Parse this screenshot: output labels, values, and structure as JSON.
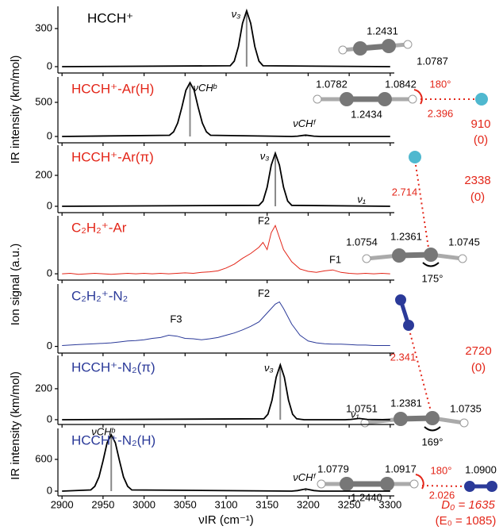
{
  "x_axis": {
    "label": "νIR (cm⁻¹)",
    "xlim": [
      2895,
      3305
    ],
    "xticks": [
      2900,
      2950,
      3000,
      3050,
      3100,
      3150,
      3200,
      3250,
      3300
    ]
  },
  "y_axis_labels": [
    "IR intensity (km/mol)",
    "Ion signal (a.u.)",
    "IR intensity (km/mol)"
  ],
  "chart_data": [
    {
      "type": "line",
      "title": "HCCH⁺",
      "title_color": "#000000",
      "ylim": [
        -50,
        475
      ],
      "yticks": [
        0,
        300
      ],
      "series": [
        {
          "color": "#000000",
          "x": [
            2900,
            3105,
            3110,
            3115,
            3120,
            3125,
            3130,
            3135,
            3140,
            3145,
            3300
          ],
          "values": [
            0,
            7,
            44,
            158,
            341,
            440,
            341,
            158,
            44,
            7,
            0
          ]
        }
      ],
      "sticks": {
        "color": "#888888",
        "x": [
          3125
        ],
        "values": [
          440
        ]
      },
      "annotations": [
        {
          "text": "ν₃",
          "x": 3112,
          "y": 410
        }
      ]
    },
    {
      "type": "line",
      "title": "HCCH⁺-Ar(H)",
      "title_color": "#e32619",
      "ylim": [
        -93,
        872
      ],
      "yticks": [
        0,
        500
      ],
      "series": [
        {
          "color": "#000000",
          "x": [
            2900,
            3031,
            3036,
            3041,
            3046,
            3051,
            3056,
            3061,
            3066,
            3071,
            3076,
            3081,
            3180,
            3187,
            3197,
            3207,
            3215,
            3300
          ],
          "values": [
            0,
            17,
            67,
            198,
            427,
            677,
            790,
            677,
            427,
            198,
            67,
            17,
            0,
            5,
            20,
            5,
            0,
            0
          ]
        }
      ],
      "sticks": {
        "color": "#888888",
        "x": [
          3056,
          3197
        ],
        "values": [
          790,
          20
        ]
      },
      "annotations": [
        {
          "text": "νCHᵇ",
          "x": 3074,
          "y": 700
        },
        {
          "text": "νCHᶠ",
          "x": 3195,
          "y": 180
        }
      ]
    },
    {
      "type": "line",
      "title": "HCCH⁺-Ar(π)",
      "title_color": "#e32619",
      "ylim": [
        -41,
        395
      ],
      "yticks": [
        0,
        200
      ],
      "series": [
        {
          "color": "#000000",
          "x": [
            2900,
            3140,
            3145,
            3150,
            3155,
            3160,
            3165,
            3170,
            3175,
            3180,
            3300
          ],
          "values": [
            0,
            6,
            34,
            123,
            266,
            343,
            266,
            123,
            34,
            6,
            0
          ]
        }
      ],
      "sticks": {
        "color": "#888888",
        "x": [
          3160
        ],
        "values": [
          343
        ]
      },
      "annotations": [
        {
          "text": "ν₃",
          "x": 3147,
          "y": 320
        },
        {
          "text": "ν₁",
          "x": 3265,
          "y": 40
        }
      ]
    },
    {
      "type": "line",
      "title": "C₂H₂⁺-Ar",
      "title_color": "#e32619",
      "ylim": [
        -0.13,
        1.2
      ],
      "yticks": [
        0
      ],
      "series": [
        {
          "color": "#e32619",
          "x": [
            2900,
            2910,
            2920,
            2930,
            2940,
            2950,
            2960,
            2970,
            2980,
            2990,
            3000,
            3010,
            3020,
            3030,
            3040,
            3050,
            3060,
            3070,
            3080,
            3090,
            3100,
            3110,
            3120,
            3130,
            3140,
            3145,
            3150,
            3155,
            3160,
            3165,
            3170,
            3180,
            3190,
            3200,
            3210,
            3220,
            3230,
            3240,
            3250,
            3260,
            3270,
            3280,
            3290,
            3300
          ],
          "values": [
            0,
            0.01,
            -0.01,
            0,
            0.01,
            0,
            -0.01,
            0,
            0.01,
            0,
            0.01,
            0,
            0.01,
            0,
            0.01,
            0.02,
            0.01,
            0.03,
            0.04,
            0.06,
            0.12,
            0.2,
            0.32,
            0.42,
            0.55,
            0.65,
            0.5,
            0.85,
            1.0,
            0.75,
            0.5,
            0.25,
            0.1,
            0.05,
            0.03,
            0.06,
            0.08,
            0.03,
            0.01,
            0,
            0.01,
            0,
            0.01,
            0
          ]
        }
      ],
      "annotations": [
        {
          "text": "F2",
          "x": 3146,
          "y": 1.08
        },
        {
          "text": "F1",
          "x": 3233,
          "y": 0.28
        }
      ]
    },
    {
      "type": "line",
      "title": "C₂H₂⁺-N₂",
      "title_color": "#2b3a99",
      "ylim": [
        -0.15,
        1.4
      ],
      "yticks": [
        0
      ],
      "series": [
        {
          "color": "#2b3a99",
          "x": [
            2900,
            2910,
            2920,
            2930,
            2940,
            2950,
            2960,
            2970,
            2980,
            2990,
            3000,
            3010,
            3020,
            3030,
            3040,
            3050,
            3060,
            3070,
            3080,
            3090,
            3100,
            3110,
            3120,
            3130,
            3140,
            3150,
            3160,
            3165,
            3170,
            3180,
            3190,
            3200,
            3210,
            3220,
            3230,
            3240,
            3250,
            3260,
            3270,
            3280,
            3290,
            3300
          ],
          "values": [
            0.02,
            0.03,
            0.04,
            0.05,
            0.06,
            0.07,
            0.08,
            0.1,
            0.12,
            0.13,
            0.15,
            0.18,
            0.2,
            0.25,
            0.23,
            0.18,
            0.17,
            0.15,
            0.17,
            0.2,
            0.25,
            0.3,
            0.37,
            0.45,
            0.55,
            0.75,
            0.95,
            1.0,
            0.85,
            0.5,
            0.25,
            0.12,
            0.08,
            0.06,
            0.05,
            0.05,
            0.04,
            0.03,
            0.03,
            0.02,
            0.02,
            0.02
          ]
        }
      ],
      "annotations": [
        {
          "text": "F3",
          "x": 3039,
          "y": 0.6
        },
        {
          "text": "F2",
          "x": 3146,
          "y": 1.18
        }
      ]
    },
    {
      "type": "line",
      "title": "HCCH⁺-N₂(π)",
      "title_color": "#2b3a99",
      "ylim": [
        -31,
        415
      ],
      "yticks": [
        0,
        200
      ],
      "series": [
        {
          "color": "#000000",
          "x": [
            2900,
            3146,
            3151,
            3156,
            3161,
            3166,
            3171,
            3176,
            3181,
            3186,
            3195,
            3245,
            3252,
            3262,
            3272,
            3300
          ],
          "values": [
            0,
            6,
            35,
            127,
            274,
            354,
            274,
            127,
            35,
            6,
            0,
            0,
            2,
            8,
            2,
            0
          ]
        }
      ],
      "sticks": {
        "color": "#888888",
        "x": [
          3166
        ],
        "values": [
          354
        ]
      },
      "annotations": [
        {
          "text": "ν₃",
          "x": 3152,
          "y": 330
        },
        {
          "text": "ν₁",
          "x": 3257,
          "y": 30
        }
      ]
    },
    {
      "type": "line",
      "title": "HCCH⁺-N₂(H)",
      "title_color": "#2b3a99",
      "ylim": [
        -90,
        1185
      ],
      "yticks": [
        0,
        600
      ],
      "series": [
        {
          "color": "#000000",
          "x": [
            2900,
            2935,
            2940,
            2945,
            2950,
            2955,
            2960,
            2965,
            2970,
            2975,
            2980,
            2985,
            3180,
            3187,
            3197,
            3207,
            3215,
            3300
          ],
          "values": [
            0,
            22,
            91,
            266,
            575,
            913,
            1065,
            913,
            575,
            266,
            91,
            22,
            0,
            10,
            40,
            10,
            0,
            0
          ]
        }
      ],
      "sticks": {
        "color": "#888888",
        "x": [
          2960,
          3197
        ],
        "values": [
          1065,
          40
        ]
      },
      "annotations": [
        {
          "text": "νCHᵇ",
          "x": 2950,
          "y": 1110
        },
        {
          "text": "νCHᶠ",
          "x": 3195,
          "y": 250
        }
      ]
    }
  ],
  "structure_labels": [
    "1.2431",
    "1.0787",
    "1.0782",
    "1.0842",
    "180°",
    "1.2434",
    "2.396",
    "910",
    "(0)",
    "2.714",
    "2338",
    "(0)",
    "1.0754",
    "1.2361",
    "1.0745",
    "175°",
    "2.341",
    "2720",
    "(0)",
    "1.0751",
    "1.2381",
    "1.0735",
    "169°",
    "1.0779",
    "1.0917",
    "180°",
    "1.0900",
    "2.026",
    "1.2440",
    "D₀ = 1635",
    "(E₀ = 1085)"
  ]
}
